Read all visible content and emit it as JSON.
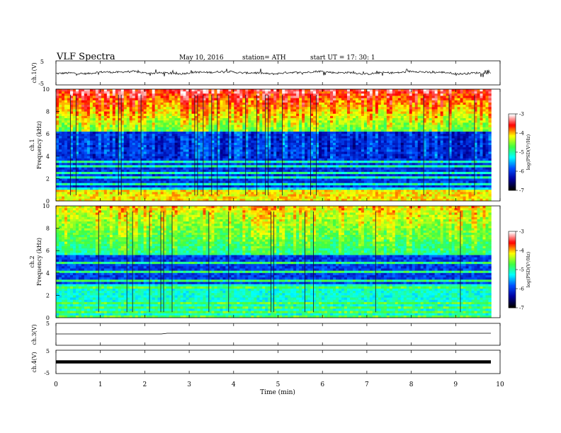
{
  "header": {
    "title": "VLF Spectra",
    "date": "May 10, 2016",
    "station": "station= ATH",
    "start": "start  UT  =   17: 30: 1"
  },
  "axes": {
    "time_label": "Time  (min)",
    "freq_label": "Frequency  (kHz)",
    "ch1_voltage_label": "ch.1(V)",
    "ch1_label": "ch.1",
    "ch2_label": "ch.2",
    "ch3_voltage_label": "ch.3(V)",
    "ch4_voltage_label": "ch.4(V)",
    "colorbar_label": "log(PSD(V²/Hz)"
  },
  "colors": {
    "colormap": [
      "#000000",
      "#0000a0",
      "#0050ff",
      "#00ffff",
      "#40ff40",
      "#ffff00",
      "#ff0000",
      "#ffffff"
    ]
  },
  "chart_data": [
    {
      "type": "line",
      "id": "ch1_waveform",
      "ylabel": "ch.1(V)",
      "x_range": [
        0,
        10
      ],
      "ylim": [
        -5,
        5
      ],
      "y_ticks": [
        5,
        -5
      ],
      "baseline_value": 0,
      "data_extent_min": 9.8
    },
    {
      "type": "heatmap",
      "id": "ch1_spectrogram",
      "ylabel": "Frequency (kHz)",
      "channel": "ch.1",
      "ylim": [
        0,
        10
      ],
      "y_ticks": [
        0,
        2,
        4,
        6,
        8,
        10
      ],
      "colorbar": {
        "label": "log(PSD(V²/Hz)",
        "range": [
          -7,
          -3
        ],
        "ticks": [
          -3,
          -4,
          -5,
          -6,
          -7
        ]
      }
    },
    {
      "type": "heatmap",
      "id": "ch2_spectrogram",
      "ylabel": "Frequency (kHz)",
      "channel": "ch.2",
      "ylim": [
        0,
        10
      ],
      "y_ticks": [
        0,
        2,
        4,
        6,
        8,
        10
      ],
      "colorbar": {
        "label": "log(PSD(V²/Hz)",
        "range": [
          -7,
          -3
        ],
        "ticks": [
          -3,
          -4,
          -5,
          -6,
          -7
        ]
      }
    },
    {
      "type": "line",
      "id": "ch3_waveform",
      "ylabel": "ch.3(V)",
      "ylim": [
        -5,
        5
      ],
      "y_ticks": [
        5
      ],
      "baseline_value": 0
    },
    {
      "type": "line",
      "id": "ch4_waveform",
      "ylabel": "ch.4(V)",
      "ylim": [
        -5,
        5
      ],
      "y_ticks": [
        5,
        -5
      ],
      "baseline_value": 0
    },
    {
      "type": "line",
      "id": "time_axis",
      "xlabel": "Time  (min)",
      "x_range": [
        0,
        10
      ],
      "x_ticks": [
        0,
        1,
        2,
        3,
        4,
        5,
        6,
        7,
        8,
        9,
        10
      ]
    }
  ]
}
